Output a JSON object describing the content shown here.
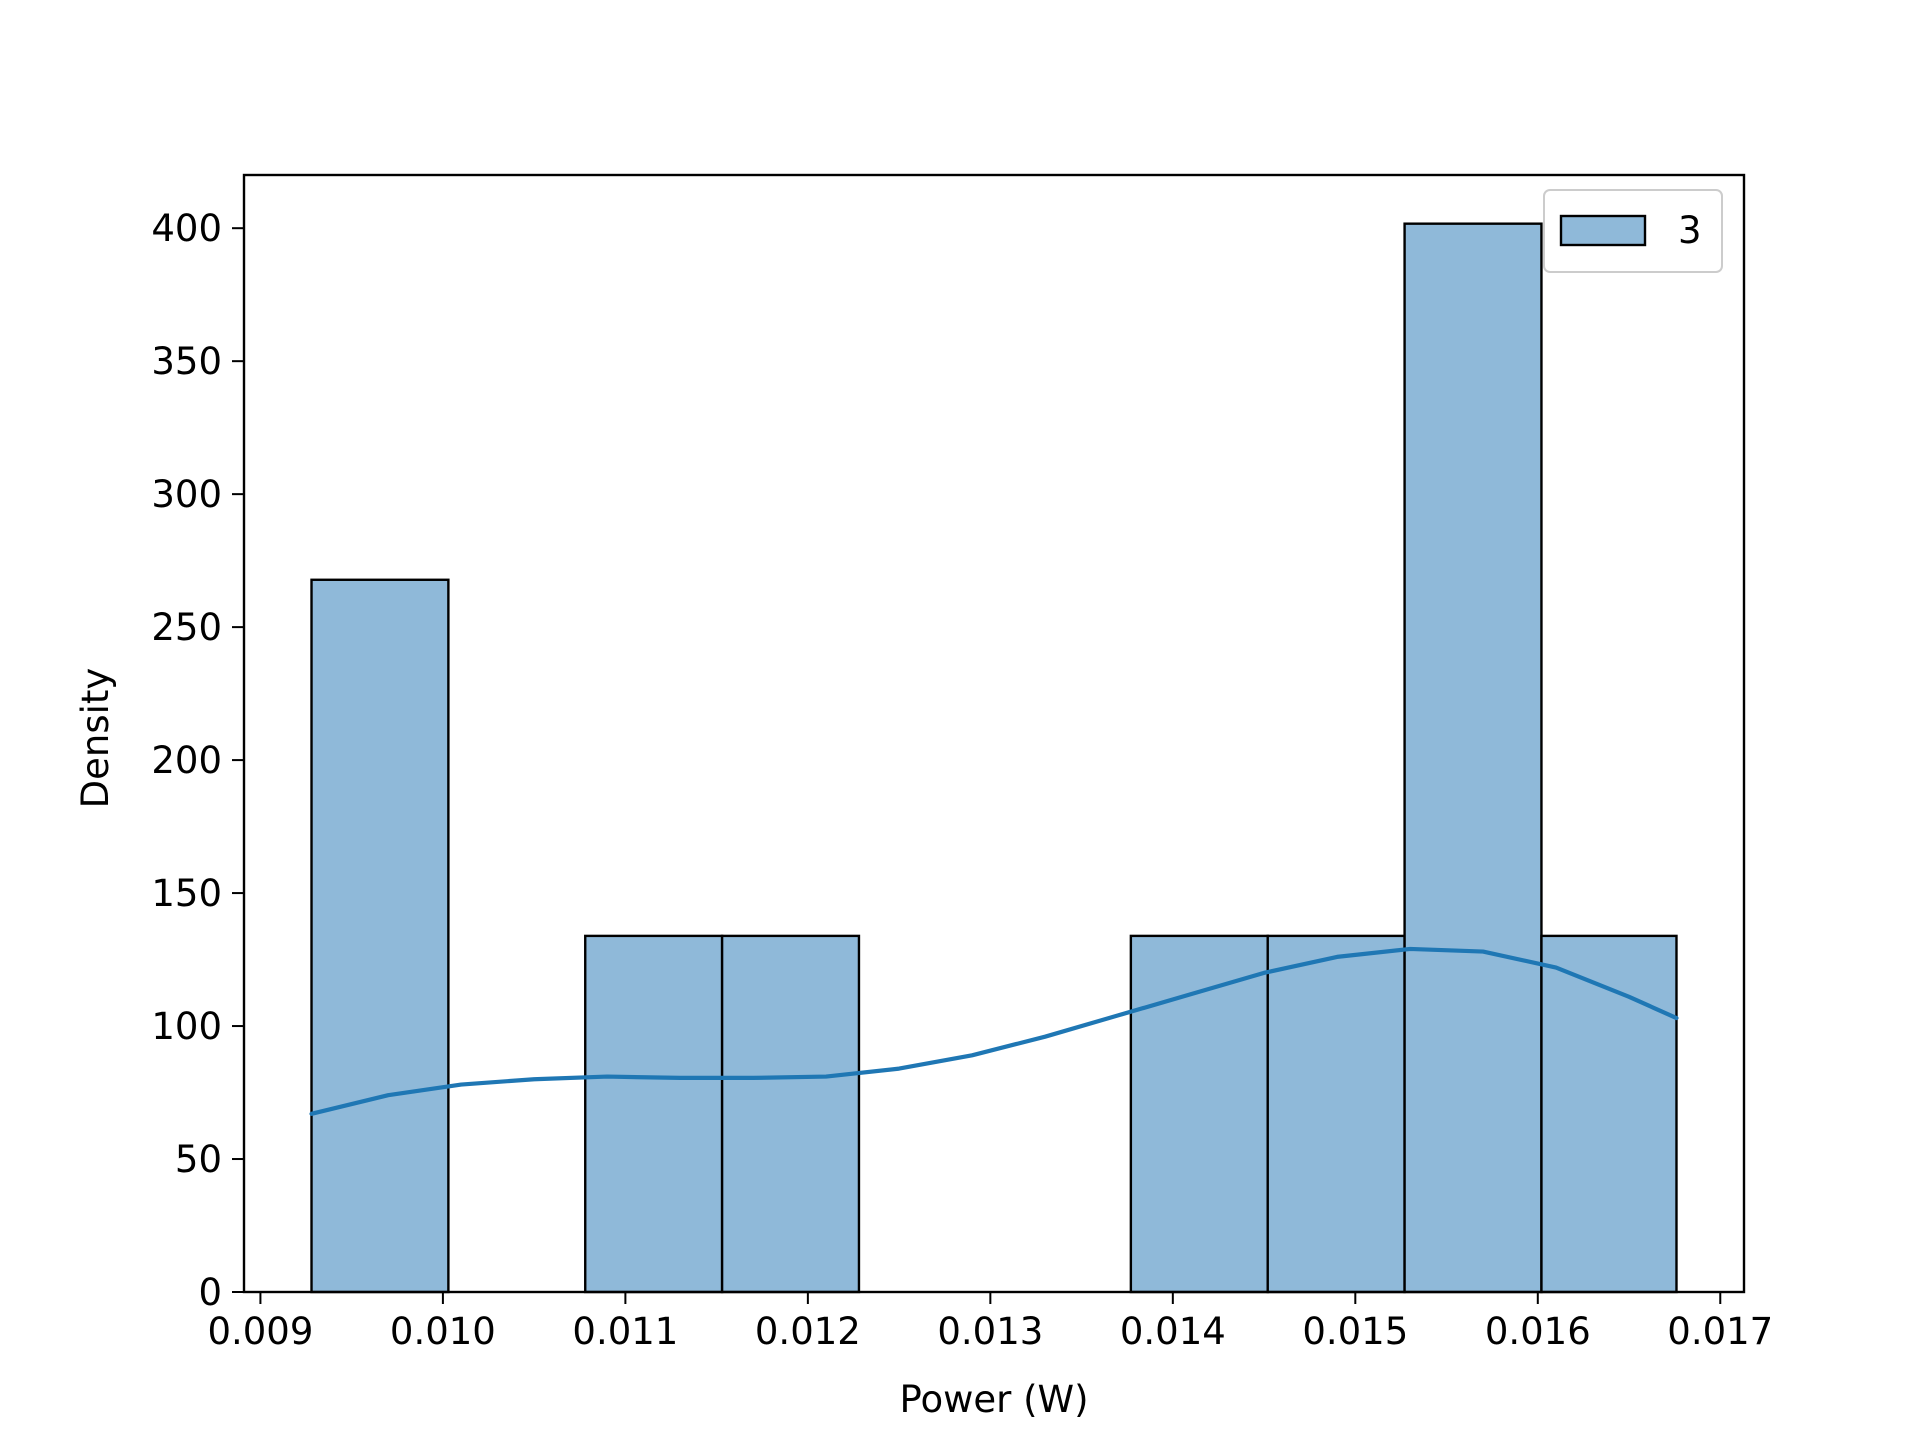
{
  "chart_data": {
    "type": "bar",
    "subtype": "histogram_with_kde",
    "xlabel": "Power (W)",
    "ylabel": "Density",
    "xlim": [
      0.00891,
      0.01713
    ],
    "ylim": [
      0,
      420
    ],
    "x_ticks": [
      {
        "value": 0.009,
        "label": "0.009"
      },
      {
        "value": 0.01,
        "label": "0.010"
      },
      {
        "value": 0.011,
        "label": "0.011"
      },
      {
        "value": 0.012,
        "label": "0.012"
      },
      {
        "value": 0.013,
        "label": "0.013"
      },
      {
        "value": 0.014,
        "label": "0.014"
      },
      {
        "value": 0.015,
        "label": "0.015"
      },
      {
        "value": 0.016,
        "label": "0.016"
      },
      {
        "value": 0.017,
        "label": "0.017"
      }
    ],
    "y_ticks": [
      {
        "value": 0,
        "label": "0"
      },
      {
        "value": 50,
        "label": "50"
      },
      {
        "value": 100,
        "label": "100"
      },
      {
        "value": 150,
        "label": "150"
      },
      {
        "value": 200,
        "label": "200"
      },
      {
        "value": 250,
        "label": "250"
      },
      {
        "value": 300,
        "label": "300"
      },
      {
        "value": 350,
        "label": "350"
      },
      {
        "value": 400,
        "label": "400"
      }
    ],
    "bins": [
      {
        "x0": 0.00928,
        "x1": 0.01003,
        "value": 267.8
      },
      {
        "x0": 0.01003,
        "x1": 0.01078,
        "value": 0
      },
      {
        "x0": 0.01078,
        "x1": 0.01153,
        "value": 133.9
      },
      {
        "x0": 0.01153,
        "x1": 0.01228,
        "value": 133.9
      },
      {
        "x0": 0.01228,
        "x1": 0.01303,
        "value": 0
      },
      {
        "x0": 0.01303,
        "x1": 0.01377,
        "value": 0
      },
      {
        "x0": 0.01377,
        "x1": 0.01452,
        "value": 133.9
      },
      {
        "x0": 0.01452,
        "x1": 0.01527,
        "value": 133.9
      },
      {
        "x0": 0.01527,
        "x1": 0.01602,
        "value": 401.7
      },
      {
        "x0": 0.01602,
        "x1": 0.01676,
        "value": 133.9
      }
    ],
    "kde": {
      "x": [
        0.00928,
        0.0097,
        0.0101,
        0.0105,
        0.0109,
        0.0113,
        0.0117,
        0.0121,
        0.0125,
        0.0129,
        0.0133,
        0.0137,
        0.0141,
        0.0145,
        0.0149,
        0.0153,
        0.0157,
        0.0161,
        0.0165,
        0.01676
      ],
      "y": [
        67,
        74,
        78,
        80,
        81,
        80.5,
        80.5,
        81,
        84,
        89,
        96,
        104,
        112,
        120,
        126,
        129,
        128,
        122,
        111,
        103
      ]
    },
    "series": [
      {
        "name": "3",
        "color": "#1f77b4",
        "fill_color": "#8fb9d9"
      }
    ],
    "legend": {
      "position": "top-right",
      "entries": [
        "3"
      ]
    },
    "grid": false
  }
}
